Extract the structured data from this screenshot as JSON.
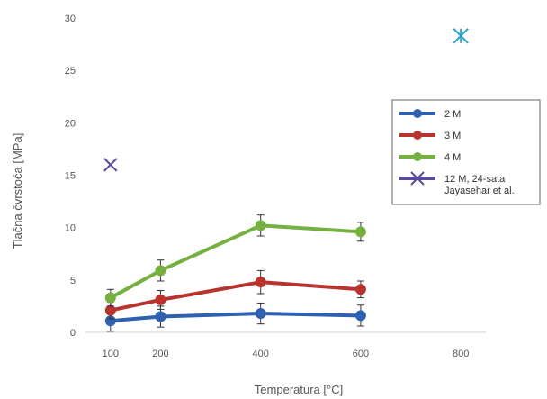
{
  "chart_data": {
    "type": "line",
    "title": "",
    "xlabel": "Temperatura [°C]",
    "ylabel": "Tlačna čvrstoća [MPa]",
    "xlim": [
      50,
      850
    ],
    "ylim": [
      0,
      30
    ],
    "x_ticks": [
      "100",
      "200",
      "400",
      "600",
      "800"
    ],
    "y_ticks": [
      "0",
      "5",
      "10",
      "15",
      "20",
      "25",
      "30"
    ],
    "grid": false,
    "legend_position": "right",
    "series": [
      {
        "name": "2 M",
        "color": "#2E62B0",
        "marker": "circle",
        "x": [
          100,
          200,
          400,
          600
        ],
        "values": [
          1.1,
          1.5,
          1.8,
          1.6
        ],
        "error": [
          1.0,
          1.0,
          1.0,
          1.0
        ]
      },
      {
        "name": "3 M",
        "color": "#B8322E",
        "marker": "circle",
        "x": [
          100,
          200,
          400,
          600
        ],
        "values": [
          2.1,
          3.1,
          4.8,
          4.1
        ],
        "error": [
          0.8,
          0.9,
          1.1,
          0.8
        ]
      },
      {
        "name": "4 M",
        "color": "#76B041",
        "marker": "circle",
        "x": [
          100,
          200,
          400,
          600
        ],
        "values": [
          3.3,
          5.9,
          10.2,
          9.6
        ],
        "error": [
          0.8,
          1.0,
          1.0,
          0.9
        ]
      },
      {
        "name": "12 M, 24-sata",
        "name_line2": "Jayasehar et al.",
        "color": "#5A4A9E",
        "marker": "x-star",
        "points": [
          {
            "x": 100,
            "y": 16.0,
            "color": "#5A4A9E",
            "marker": "x"
          },
          {
            "x": 800,
            "y": 28.3,
            "color": "#2AA3C9",
            "marker": "star"
          }
        ]
      }
    ]
  }
}
